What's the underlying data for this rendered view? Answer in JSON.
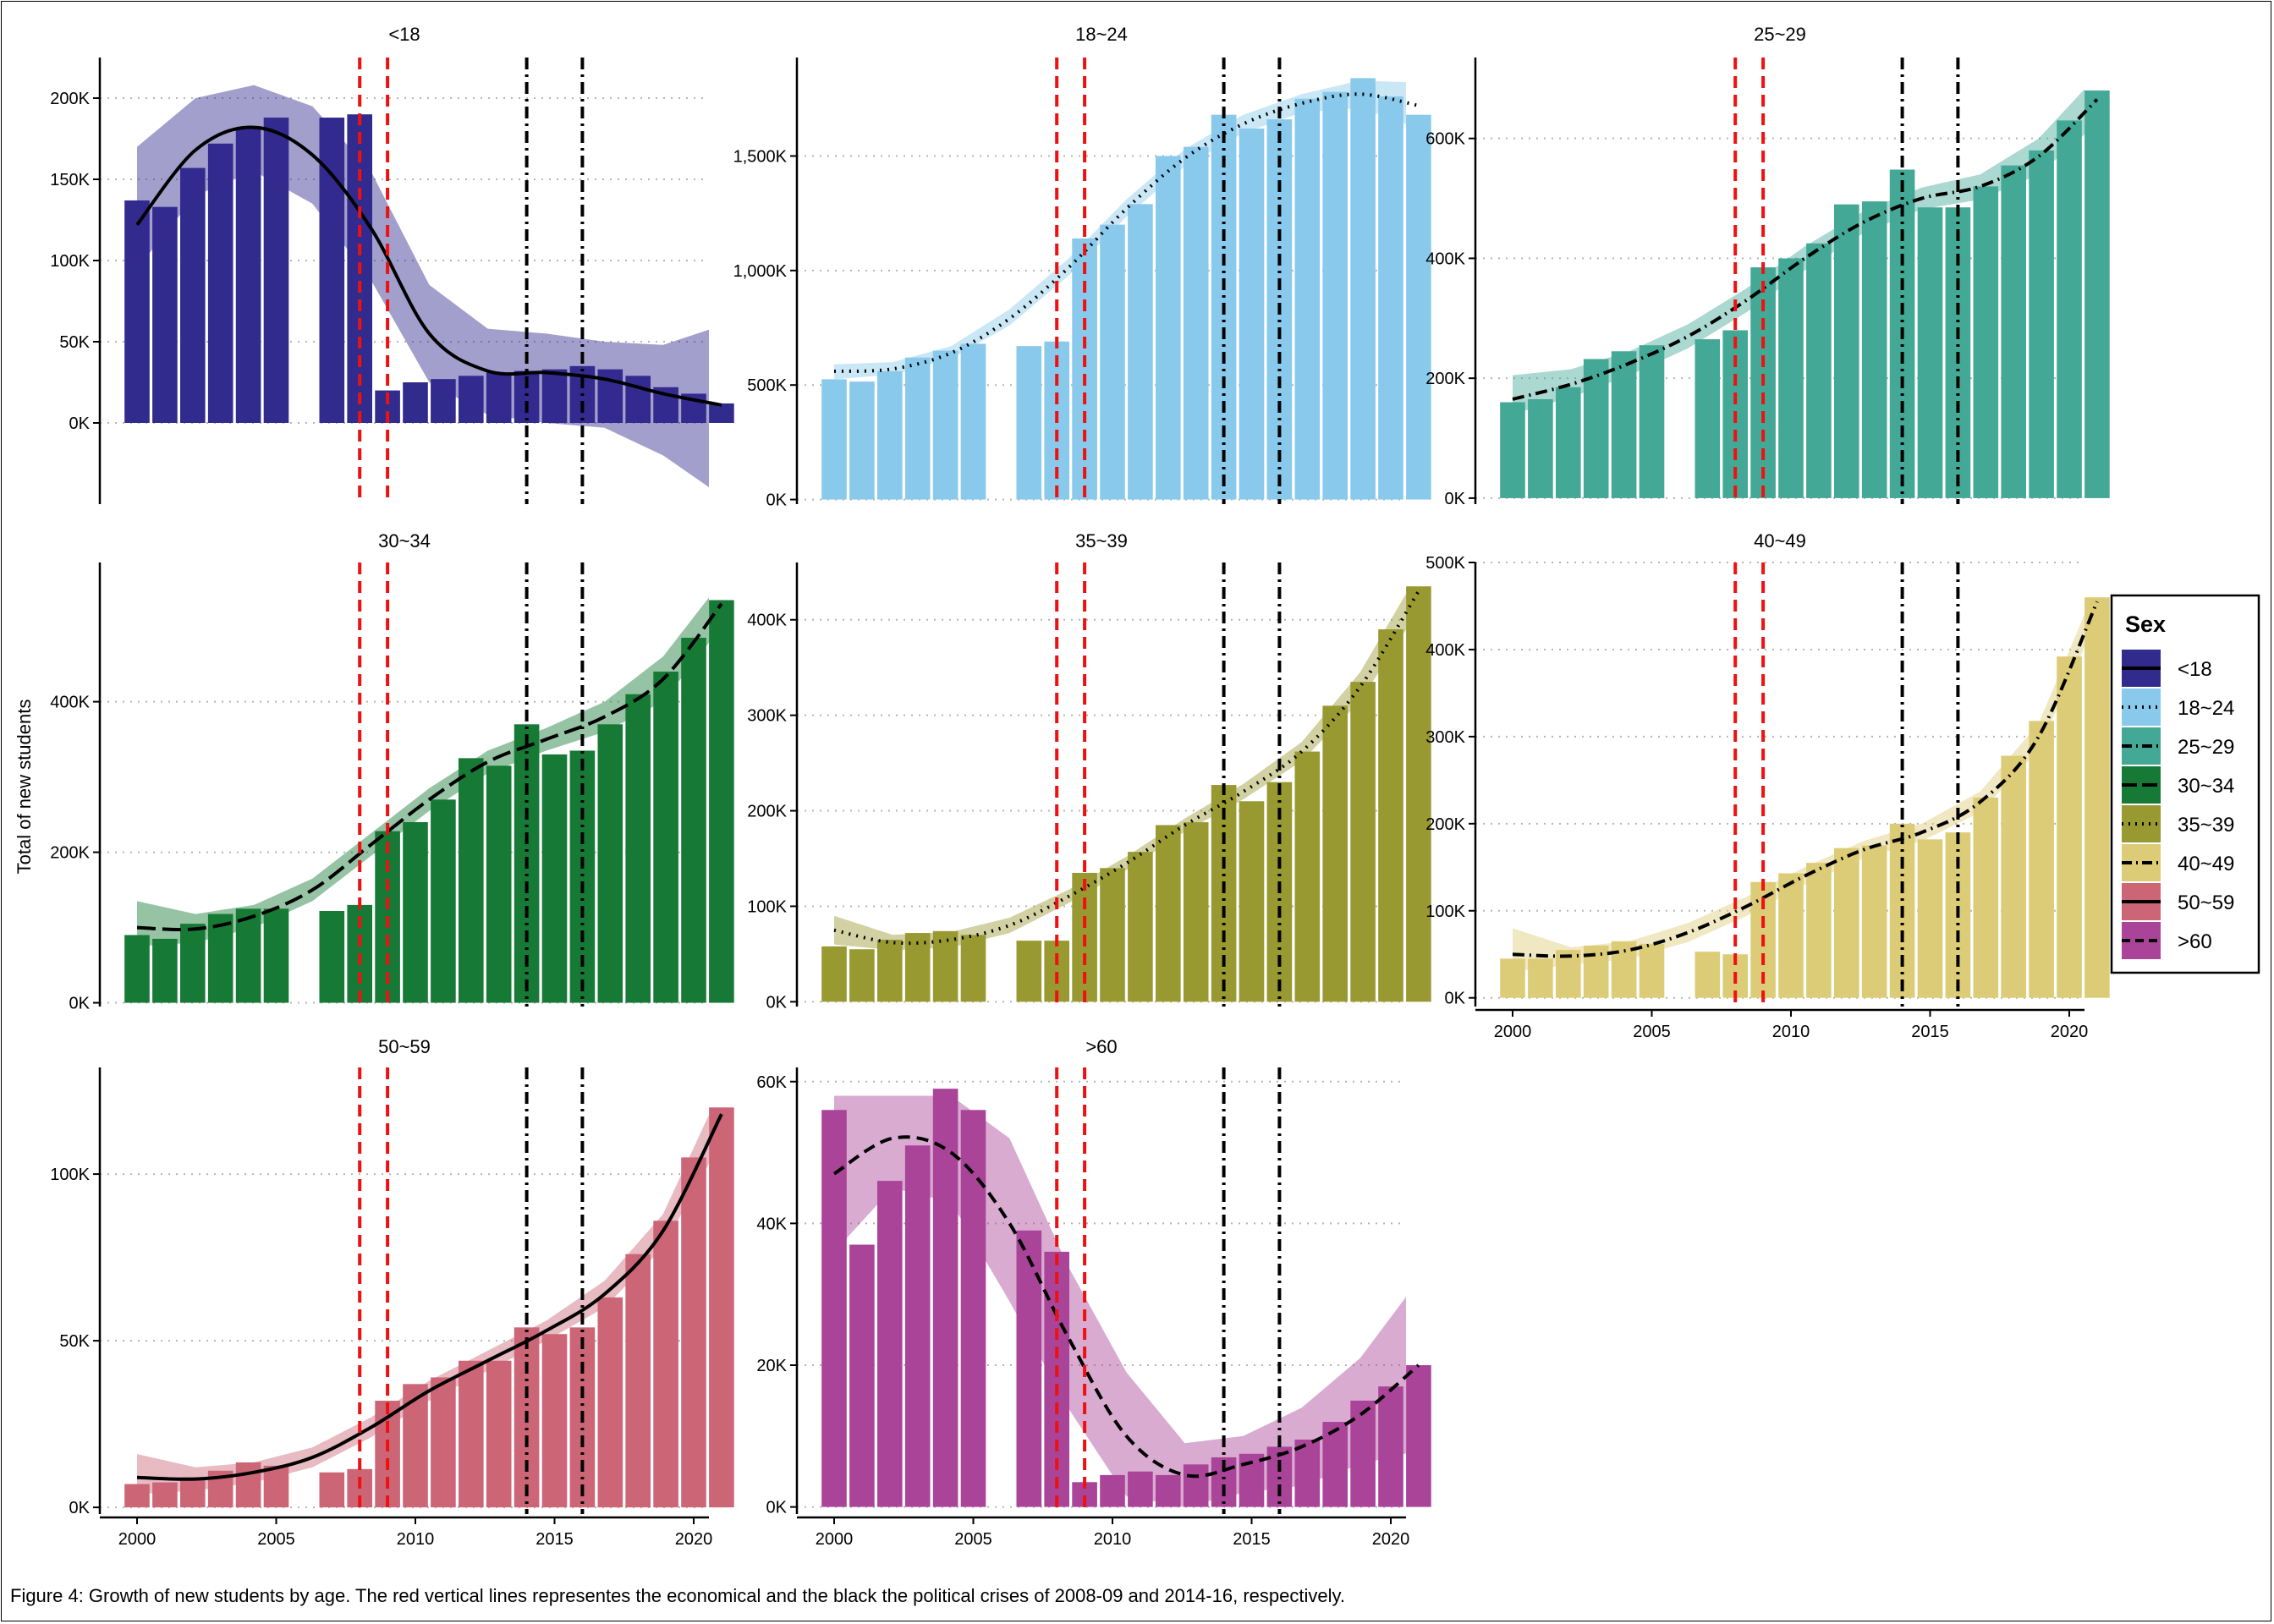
{
  "caption": "Figure 4: Growth of new students by age. The red vertical lines representes the economical and the black the political crises of 2008-09 and 2014-16, respectively.",
  "chart_data": {
    "type": "bar",
    "ylabel": "Total of new students",
    "x_ticks": [
      "2000",
      "2005",
      "2010",
      "2015",
      "2020"
    ],
    "x_range": [
      1999.4,
      2022.4
    ],
    "economic_crisis_lines": [
      2008,
      2009
    ],
    "political_crisis_lines": [
      2014,
      2016
    ],
    "crisis_line_colors": {
      "economic": "#ee1111",
      "political": "#000000"
    },
    "grid": "horizontal dotted",
    "legend": {
      "title": "Sex",
      "placement": "right",
      "entries": [
        {
          "label": "<18",
          "color": "#322b8e",
          "line_style": "solid"
        },
        {
          "label": "18~24",
          "color": "#89c9ec",
          "line_style": "dotted"
        },
        {
          "label": "25~29",
          "color": "#44a896",
          "line_style": "dashdot"
        },
        {
          "label": "30~34",
          "color": "#167a36",
          "line_style": "longdash"
        },
        {
          "label": "35~39",
          "color": "#999932",
          "line_style": "dotted"
        },
        {
          "label": "40~49",
          "color": "#ddcc77",
          "line_style": "dashdot"
        },
        {
          "label": "50~59",
          "color": "#cc6677",
          "line_style": "solid"
        },
        {
          "label": ">60",
          "color": "#aa4499",
          "line_style": "dashed"
        }
      ]
    },
    "panels": [
      {
        "title": "<18",
        "color": "#322b8e",
        "line_style": "solid",
        "ylim": [
          -50000,
          225000
        ],
        "yticks": [
          0,
          50000,
          100000,
          150000,
          200000
        ],
        "ytick_labels": [
          "0K",
          "50K",
          "100K",
          "150K",
          "200K"
        ],
        "x": [
          2000,
          2001,
          2002,
          2003,
          2004,
          2005,
          2007,
          2008,
          2009,
          2010,
          2011,
          2012,
          2013,
          2014,
          2015,
          2016,
          2017,
          2018,
          2019,
          2020,
          2021
        ],
        "values": [
          137000,
          133000,
          157000,
          172000,
          182000,
          188000,
          188000,
          190000,
          20000,
          25000,
          27000,
          29000,
          31000,
          32000,
          33000,
          35000,
          33000,
          29000,
          22000,
          18000,
          12000
        ],
        "trend": [
          122000,
          168000,
          182000,
          165000,
          120000,
          55000,
          32000,
          31000,
          27000,
          18000,
          11000
        ],
        "band_upper": [
          170000,
          200000,
          208000,
          195000,
          155000,
          85000,
          58000,
          55000,
          50000,
          48000,
          60000
        ],
        "band_lower": [
          95000,
          140000,
          155000,
          135000,
          88000,
          25000,
          5000,
          0,
          -3000,
          -20000,
          -45000
        ]
      },
      {
        "title": "18~24",
        "color": "#89c9ec",
        "line_style": "dotted",
        "ylim": [
          -20000,
          1930000
        ],
        "yticks": [
          0,
          500000,
          1000000,
          1500000
        ],
        "ytick_labels": [
          "0K",
          "500K",
          "1,000K",
          "1,500K"
        ],
        "x": [
          2000,
          2001,
          2002,
          2003,
          2004,
          2005,
          2007,
          2008,
          2009,
          2010,
          2011,
          2012,
          2013,
          2014,
          2015,
          2016,
          2017,
          2018,
          2019,
          2020,
          2021
        ],
        "values": [
          525000,
          515000,
          560000,
          620000,
          650000,
          680000,
          670000,
          690000,
          1140000,
          1200000,
          1290000,
          1500000,
          1540000,
          1680000,
          1620000,
          1660000,
          1750000,
          1780000,
          1840000,
          1760000,
          1680000
        ],
        "trend": [
          560000,
          570000,
          640000,
          790000,
          1010000,
          1270000,
          1490000,
          1640000,
          1730000,
          1770000,
          1720000
        ],
        "band_upper": [
          590000,
          600000,
          670000,
          830000,
          1050000,
          1310000,
          1530000,
          1680000,
          1770000,
          1830000,
          1820000
        ],
        "band_lower": [
          525000,
          545000,
          615000,
          760000,
          975000,
          1235000,
          1455000,
          1600000,
          1690000,
          1710000,
          1620000
        ]
      },
      {
        "title": "25~29",
        "color": "#44a896",
        "line_style": "dashdot",
        "ylim": [
          -10000,
          735000
        ],
        "yticks": [
          0,
          200000,
          400000,
          600000
        ],
        "ytick_labels": [
          "0K",
          "200K",
          "400K",
          "600K"
        ],
        "x": [
          2000,
          2001,
          2002,
          2003,
          2004,
          2005,
          2007,
          2008,
          2009,
          2010,
          2011,
          2012,
          2013,
          2014,
          2015,
          2016,
          2017,
          2018,
          2019,
          2020,
          2021
        ],
        "values": [
          160000,
          165000,
          185000,
          232000,
          245000,
          255000,
          265000,
          280000,
          385000,
          400000,
          425000,
          490000,
          495000,
          548000,
          485000,
          485000,
          520000,
          555000,
          580000,
          630000,
          680000
        ],
        "trend": [
          165000,
          190000,
          225000,
          270000,
          330000,
          400000,
          460000,
          500000,
          520000,
          570000,
          665000
        ],
        "band_upper": [
          205000,
          215000,
          245000,
          290000,
          350000,
          420000,
          478000,
          518000,
          540000,
          600000,
          705000
        ],
        "band_lower": [
          140000,
          168000,
          205000,
          250000,
          310000,
          380000,
          442000,
          482000,
          498000,
          540000,
          625000
        ]
      },
      {
        "title": "30~34",
        "color": "#167a36",
        "line_style": "longdash",
        "ylim": [
          -5000,
          585000
        ],
        "yticks": [
          0,
          200000,
          400000
        ],
        "ytick_labels": [
          "0K",
          "200K",
          "400K"
        ],
        "x": [
          2000,
          2001,
          2002,
          2003,
          2004,
          2005,
          2007,
          2008,
          2009,
          2010,
          2011,
          2012,
          2013,
          2014,
          2015,
          2016,
          2017,
          2018,
          2019,
          2020,
          2021
        ],
        "values": [
          90000,
          85000,
          105000,
          118000,
          125000,
          125000,
          122000,
          130000,
          228000,
          240000,
          270000,
          325000,
          315000,
          370000,
          330000,
          335000,
          370000,
          410000,
          440000,
          485000,
          535000
        ],
        "trend": [
          100000,
          98000,
          115000,
          150000,
          210000,
          270000,
          320000,
          350000,
          380000,
          430000,
          530000
        ],
        "band_upper": [
          135000,
          118000,
          130000,
          165000,
          225000,
          285000,
          335000,
          365000,
          400000,
          460000,
          560000
        ],
        "band_lower": [
          75000,
          80000,
          100000,
          135000,
          195000,
          255000,
          305000,
          335000,
          360000,
          400000,
          500000
        ]
      },
      {
        "title": "35~39",
        "color": "#999932",
        "line_style": "dotted",
        "ylim": [
          -5000,
          460000
        ],
        "yticks": [
          0,
          100000,
          200000,
          300000,
          400000
        ],
        "ytick_labels": [
          "0K",
          "100K",
          "200K",
          "300K",
          "400K"
        ],
        "x": [
          2000,
          2001,
          2002,
          2003,
          2004,
          2005,
          2007,
          2008,
          2009,
          2010,
          2011,
          2012,
          2013,
          2014,
          2015,
          2016,
          2017,
          2018,
          2019,
          2020,
          2021
        ],
        "values": [
          58000,
          55000,
          65000,
          72000,
          74000,
          70000,
          64000,
          64000,
          135000,
          140000,
          157000,
          185000,
          188000,
          227000,
          210000,
          230000,
          262000,
          310000,
          335000,
          390000,
          435000
        ],
        "trend": [
          75000,
          62000,
          65000,
          80000,
          110000,
          145000,
          185000,
          220000,
          262000,
          330000,
          430000
        ],
        "band_upper": [
          90000,
          70000,
          73000,
          88000,
          117000,
          152000,
          192000,
          228000,
          272000,
          345000,
          450000
        ],
        "band_lower": [
          60000,
          54000,
          57000,
          72000,
          103000,
          138000,
          178000,
          212000,
          252000,
          315000,
          410000
        ]
      },
      {
        "title": "40~49",
        "color": "#ddcc77",
        "line_style": "dashdot",
        "ylim": [
          -10000,
          500000
        ],
        "yticks": [
          0,
          100000,
          200000,
          300000,
          400000,
          500000
        ],
        "ytick_labels": [
          "0K",
          "100K",
          "200K",
          "300K",
          "400K",
          "500K"
        ],
        "x": [
          2000,
          2001,
          2002,
          2003,
          2004,
          2005,
          2007,
          2008,
          2009,
          2010,
          2011,
          2012,
          2013,
          2014,
          2015,
          2016,
          2017,
          2018,
          2019,
          2020,
          2021
        ],
        "values": [
          45000,
          45000,
          55000,
          60000,
          65000,
          62000,
          53000,
          50000,
          133000,
          143000,
          155000,
          172000,
          175000,
          200000,
          182000,
          190000,
          230000,
          278000,
          318000,
          392000,
          460000
        ],
        "trend": [
          50000,
          48000,
          55000,
          75000,
          105000,
          140000,
          170000,
          190000,
          225000,
          300000,
          455000
        ],
        "band_upper": [
          80000,
          58000,
          65000,
          86000,
          116000,
          150000,
          180000,
          200000,
          237000,
          315000,
          475000
        ],
        "band_lower": [
          30000,
          38000,
          45000,
          64000,
          94000,
          130000,
          160000,
          180000,
          213000,
          285000,
          435000
        ]
      },
      {
        "title": "50~59",
        "color": "#cc6677",
        "line_style": "solid",
        "ylim": [
          -2000,
          132000
        ],
        "yticks": [
          0,
          50000,
          100000
        ],
        "ytick_labels": [
          "0K",
          "50K",
          "100K"
        ],
        "x": [
          2000,
          2001,
          2002,
          2003,
          2004,
          2005,
          2007,
          2008,
          2009,
          2010,
          2011,
          2012,
          2013,
          2014,
          2015,
          2016,
          2017,
          2018,
          2019,
          2020,
          2021
        ],
        "values": [
          7000,
          7500,
          9000,
          11000,
          13500,
          12500,
          10500,
          11500,
          32000,
          37000,
          39000,
          44000,
          44000,
          54000,
          52000,
          54000,
          63000,
          76000,
          86000,
          105000,
          120000
        ],
        "trend": [
          9000,
          8500,
          10500,
          15000,
          24000,
          35000,
          44000,
          53000,
          64000,
          83000,
          118000
        ],
        "band_upper": [
          16000,
          12000,
          13500,
          18000,
          27000,
          38000,
          47000,
          56000,
          68000,
          88000,
          126000
        ],
        "band_lower": [
          4000,
          5000,
          7500,
          12000,
          21000,
          32000,
          41000,
          50000,
          60000,
          78000,
          110000
        ]
      },
      {
        "title": ">60",
        "color": "#aa4499",
        "line_style": "dashed",
        "ylim": [
          -1000,
          62000
        ],
        "yticks": [
          0,
          20000,
          40000,
          60000
        ],
        "ytick_labels": [
          "0K",
          "20K",
          "40K",
          "60K"
        ],
        "x": [
          2000,
          2001,
          2002,
          2003,
          2004,
          2005,
          2007,
          2008,
          2009,
          2010,
          2011,
          2012,
          2013,
          2014,
          2015,
          2016,
          2017,
          2018,
          2019,
          2020,
          2021
        ],
        "values": [
          56000,
          37000,
          46000,
          51000,
          59000,
          56000,
          39000,
          36000,
          3500,
          4500,
          5000,
          4500,
          6000,
          7000,
          7500,
          8500,
          9500,
          12000,
          15000,
          17000,
          20000
        ],
        "trend": [
          47000,
          52000,
          50000,
          40000,
          24000,
          10000,
          4500,
          6000,
          8500,
          13000,
          20000
        ],
        "band_upper": [
          58000,
          58000,
          58000,
          52000,
          34000,
          19000,
          9000,
          10000,
          14000,
          21000,
          32000
        ],
        "band_lower": [
          36000,
          45000,
          43000,
          29000,
          14000,
          1500,
          0,
          2000,
          3000,
          6000,
          8000
        ]
      }
    ]
  }
}
